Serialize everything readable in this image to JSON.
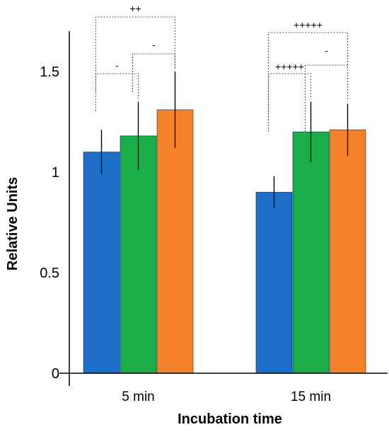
{
  "chart_data": {
    "type": "bar",
    "title": "",
    "xlabel": "Incubation time",
    "ylabel": "Relative Units",
    "ylim": [
      0,
      1.7
    ],
    "yticks": [
      0,
      0.5,
      1,
      1.5
    ],
    "ytick_labels": [
      "0",
      "0.5",
      "1",
      "1.5"
    ],
    "categories": [
      "5 min",
      "15 min"
    ],
    "grid": false,
    "legend": "none",
    "series": [
      {
        "color": "#1e6fc8",
        "values": [
          1.1,
          0.9
        ],
        "errors": [
          0.11,
          0.08
        ]
      },
      {
        "color": "#1aad4a",
        "values": [
          1.18,
          1.2
        ],
        "errors": [
          0.17,
          0.15
        ]
      },
      {
        "color": "#f5822a",
        "values": [
          1.31,
          1.21
        ],
        "errors": [
          0.19,
          0.13
        ]
      }
    ],
    "significance": [
      {
        "category": 0,
        "from": 0,
        "to": 2,
        "label": "++"
      },
      {
        "category": 0,
        "from": 0,
        "to": 1,
        "label": "-"
      },
      {
        "category": 0,
        "from": 1,
        "to": 2,
        "label": "-"
      },
      {
        "category": 1,
        "from": 0,
        "to": 2,
        "label": "+++++"
      },
      {
        "category": 1,
        "from": 0,
        "to": 1,
        "label": "+++++"
      },
      {
        "category": 1,
        "from": 1,
        "to": 2,
        "label": "-"
      }
    ]
  }
}
